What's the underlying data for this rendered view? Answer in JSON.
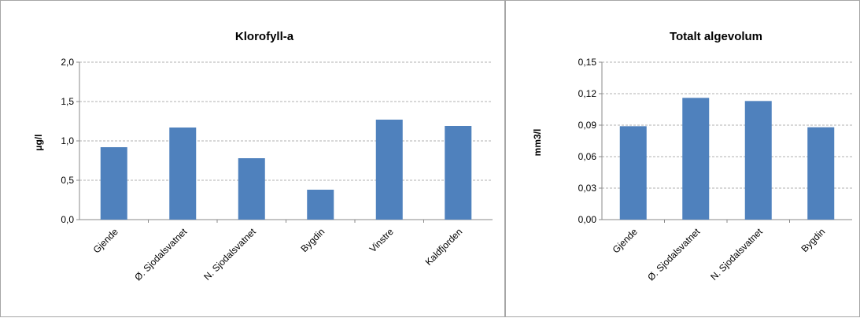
{
  "chart_data": [
    {
      "type": "bar",
      "title": "Klorofyll-a",
      "xlabel": "",
      "ylabel": "µg/l",
      "categories": [
        "Gjende",
        "Ø. Sjodalsvatnet",
        "N. Sjodalsvatnet",
        "Bygdin",
        "Vinstre",
        "Kaldfjorden"
      ],
      "values": [
        0.92,
        1.17,
        0.78,
        0.38,
        1.27,
        1.19
      ],
      "ylim": [
        0,
        2.0
      ],
      "yticks": [
        "0,0",
        "0,5",
        "1,0",
        "1,5",
        "2,0"
      ],
      "ytick_values": [
        0,
        0.5,
        1.0,
        1.5,
        2.0
      ],
      "grid": true,
      "color": "#4f81bd"
    },
    {
      "type": "bar",
      "title": "Totalt algevolum",
      "xlabel": "",
      "ylabel": "mm3/l",
      "categories": [
        "Gjende",
        "Ø. Sjodalsvatnet",
        "N. Sjodalsvatnet",
        "Bygdin"
      ],
      "values": [
        0.089,
        0.116,
        0.113,
        0.088
      ],
      "ylim": [
        0,
        0.15
      ],
      "yticks": [
        "0,00",
        "0,03",
        "0,06",
        "0,09",
        "0,12",
        "0,15"
      ],
      "ytick_values": [
        0,
        0.03,
        0.06,
        0.09,
        0.12,
        0.15
      ],
      "grid": true,
      "color": "#4f81bd"
    }
  ]
}
